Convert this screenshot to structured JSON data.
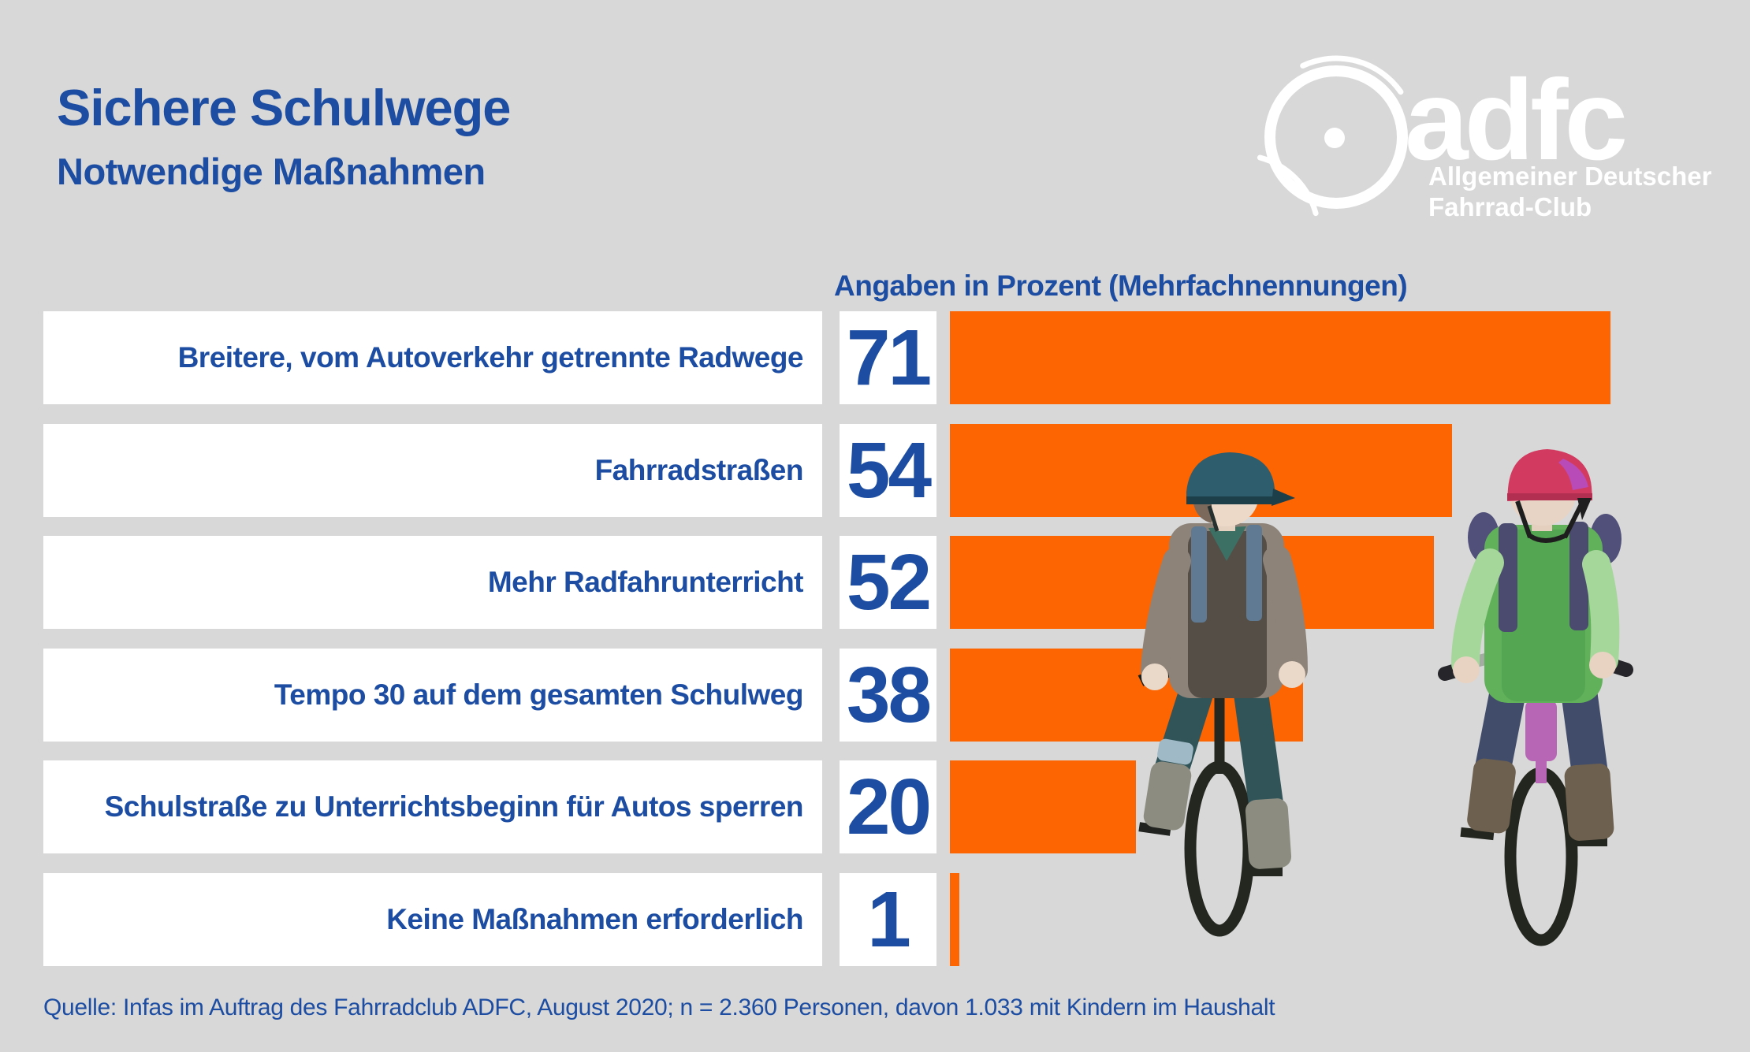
{
  "header": {
    "title": "Sichere Schulwege",
    "subtitle": "Notwendige Maßnahmen"
  },
  "logo": {
    "brand": "adfc",
    "tagline_line1": "Allgemeiner Deutscher",
    "tagline_line2": "Fahrrad-Club",
    "icon": "bicycle-wheel-icon"
  },
  "chart_data": {
    "type": "bar",
    "orientation": "horizontal",
    "title": "Angaben in Prozent (Mehrfachnennungen)",
    "unit": "percent",
    "categories": [
      "Breitere, vom Autoverkehr getrennte Radwege",
      "Fahrradstraßen",
      "Mehr Radfahrunterricht",
      "Tempo 30 auf dem gesamten Schulweg",
      "Schulstraße zu Unterrichtsbeginn für Autos sperren",
      "Keine Maßnahmen erforderlich"
    ],
    "values": [
      71,
      54,
      52,
      38,
      20,
      1
    ],
    "xlim": [
      0,
      71
    ],
    "grid": false,
    "legend": false,
    "value_labels_position": "left-of-bar"
  },
  "source": "Quelle: Infas im Auftrag des Fahrradclub ADFC, August 2020; n = 2.360 Personen, davon 1.033 mit Kindern im Haushalt",
  "colors": {
    "background": "#d8d8d8",
    "brand_blue": "#1c4da2",
    "accent_orange": "#fc6502",
    "box_white": "#ffffff",
    "logo_white": "#ffffff"
  },
  "illustration": {
    "description": "two children riding bicycles wearing helmets and backpacks",
    "left_child": {
      "helmet": "#2e5e6d",
      "sweater": "#8d8379",
      "vest": "#554e47",
      "pants": "#315459",
      "bike": "#23271f"
    },
    "right_child": {
      "helmet": "#d23a60",
      "shirt": "#61b05a",
      "pants": "#404c69",
      "bike": "#b666b4"
    }
  }
}
